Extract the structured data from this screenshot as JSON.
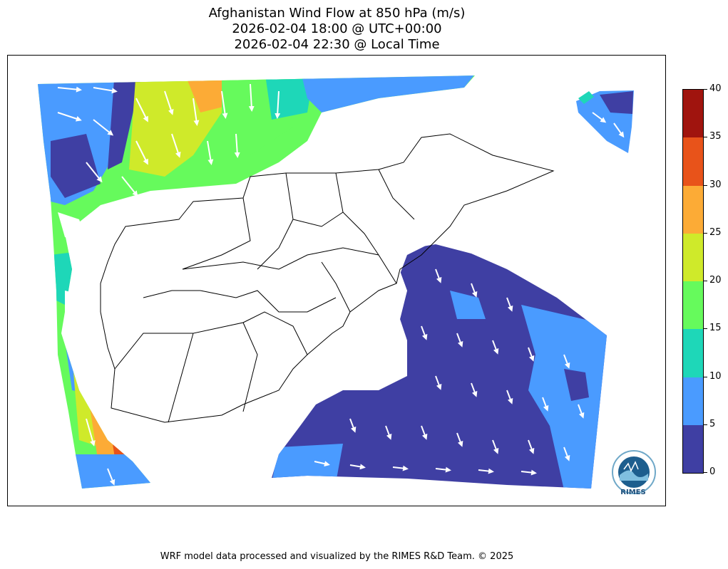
{
  "title": {
    "line1": "Afghanistan Wind Flow at 850 hPa (m/s)",
    "line2": "2026-02-04 18:00 @ UTC+00:00",
    "line3": "2026-02-04 22:30 @ Local Time"
  },
  "colorbar": {
    "ticks": [
      "0",
      "5",
      "10",
      "15",
      "20",
      "25",
      "30",
      "35",
      "40"
    ],
    "bins": [
      {
        "range": [
          0,
          5
        ],
        "color": "#3f3fa3"
      },
      {
        "range": [
          5,
          10
        ],
        "color": "#4a9bff"
      },
      {
        "range": [
          10,
          15
        ],
        "color": "#1ed7b8"
      },
      {
        "range": [
          15,
          20
        ],
        "color": "#66fa5c"
      },
      {
        "range": [
          20,
          25
        ],
        "color": "#cfea2a"
      },
      {
        "range": [
          25,
          30
        ],
        "color": "#fcab36"
      },
      {
        "range": [
          30,
          35
        ],
        "color": "#e8531a"
      },
      {
        "range": [
          35,
          40
        ],
        "color": "#a0140e"
      }
    ]
  },
  "logo": {
    "text": "RIMES"
  },
  "footer": {
    "text": "WRF model data processed and visualized by the RIMES R&D Team. © 2025"
  }
}
